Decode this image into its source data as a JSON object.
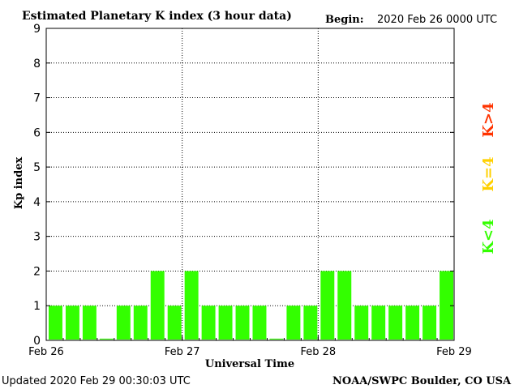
{
  "header": {
    "title": "Estimated Planetary K index (3 hour data)",
    "begin_label": "Begin:",
    "begin_value": "2020 Feb 26 0000 UTC"
  },
  "footer": {
    "updated": "Updated 2020 Feb 29 00:30:03 UTC",
    "credit": "NOAA/SWPC Boulder, CO USA"
  },
  "legend": [
    {
      "label": "K>4",
      "color": "#ff3300"
    },
    {
      "label": "K=4",
      "color": "#ffd000"
    },
    {
      "label": "K<4",
      "color": "#33ff00"
    }
  ],
  "chart_data": {
    "type": "bar",
    "title": "Estimated Planetary K index (3 hour data)",
    "xlabel": "Universal Time",
    "ylabel": "Kp index",
    "ylim": [
      0,
      9
    ],
    "yticks": [
      0,
      1,
      2,
      3,
      4,
      5,
      6,
      7,
      8,
      9
    ],
    "x_tick_labels": [
      "Feb 26",
      "Feb 27",
      "Feb 28",
      "Feb 29"
    ],
    "interval_hours": 3,
    "values": [
      1,
      1,
      1,
      0.05,
      1,
      1,
      2,
      1,
      2,
      1,
      1,
      1,
      1,
      0.05,
      1,
      1,
      2,
      2,
      1,
      1,
      1,
      1,
      1,
      2
    ],
    "bar_color": "#33ff00",
    "grid": "dotted vertical at day boundaries, dotted horizontal at integer Kp"
  }
}
